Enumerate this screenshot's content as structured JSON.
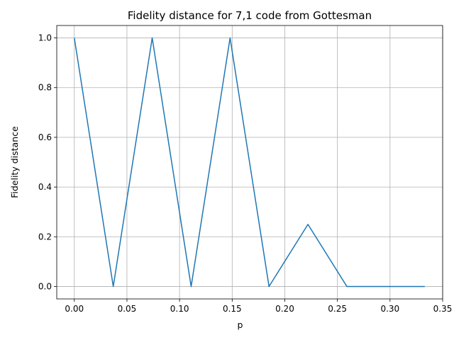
{
  "chart_data": {
    "type": "line",
    "title": "Fidelity distance for 7,1 code from Gottesman",
    "xlabel": "p",
    "ylabel": "Fidelity distance",
    "xlim": [
      -0.0167,
      0.35
    ],
    "ylim": [
      -0.05,
      1.05
    ],
    "xticks": [
      0.0,
      0.05,
      0.1,
      0.15,
      0.2,
      0.25,
      0.3,
      0.35
    ],
    "xtick_labels": [
      "0.00",
      "0.05",
      "0.10",
      "0.15",
      "0.20",
      "0.25",
      "0.30",
      "0.35"
    ],
    "yticks": [
      0.0,
      0.2,
      0.4,
      0.6,
      0.8,
      1.0
    ],
    "ytick_labels": [
      "0.0",
      "0.2",
      "0.4",
      "0.6",
      "0.8",
      "1.0"
    ],
    "grid": true,
    "series": [
      {
        "color": "#1f77b4",
        "x": [
          0.0,
          0.037,
          0.074,
          0.111,
          0.148,
          0.185,
          0.222,
          0.259,
          0.296,
          0.333
        ],
        "y": [
          1.0,
          0.0,
          1.0,
          0.0,
          1.0,
          0.0,
          0.25,
          0.0,
          0.0,
          0.0
        ]
      }
    ]
  }
}
